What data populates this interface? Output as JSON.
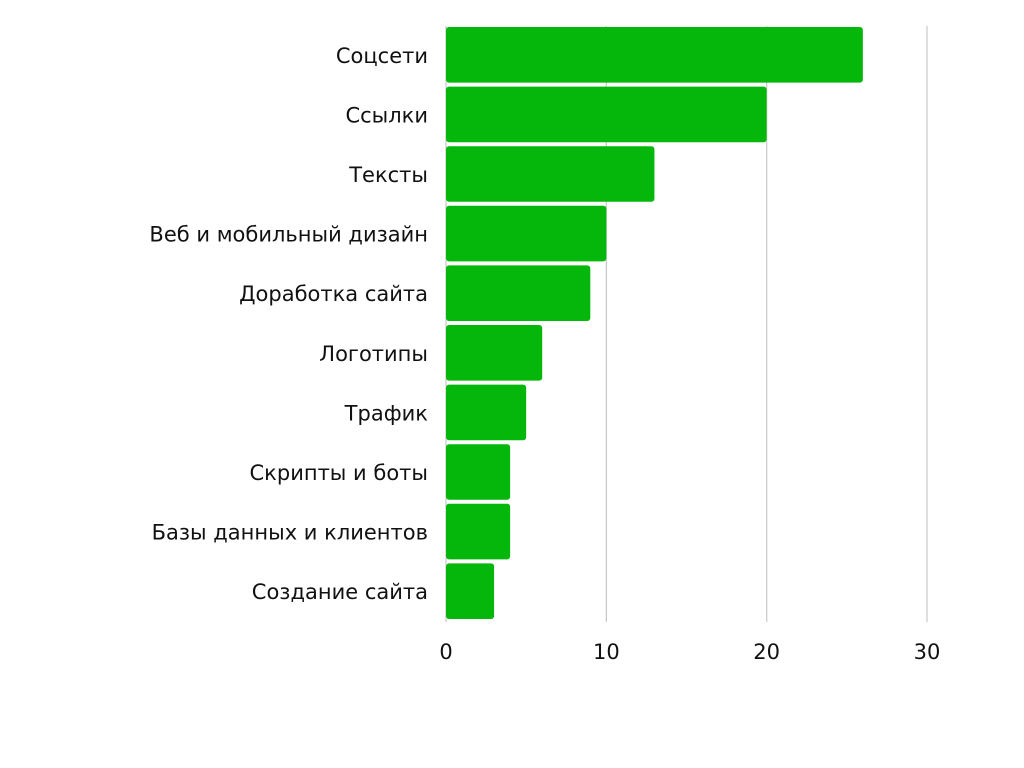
{
  "chart_data": {
    "type": "bar",
    "orientation": "horizontal",
    "categories": [
      "Соцсети",
      "Ссылки",
      "Тексты",
      "Веб и мобильный дизайн",
      "Доработка сайта",
      "Логотипы",
      "Трафик",
      "Скрипты и боты",
      "Базы данных и клиентов",
      "Создание сайта"
    ],
    "values": [
      26,
      20,
      13,
      10,
      9,
      6,
      5,
      4,
      4,
      3
    ],
    "xlim": [
      0,
      30
    ],
    "xticks": [
      "0",
      "10",
      "20",
      "30"
    ],
    "grid": true,
    "bar_color": "#06b70b",
    "grid_color": "#cccccc"
  }
}
